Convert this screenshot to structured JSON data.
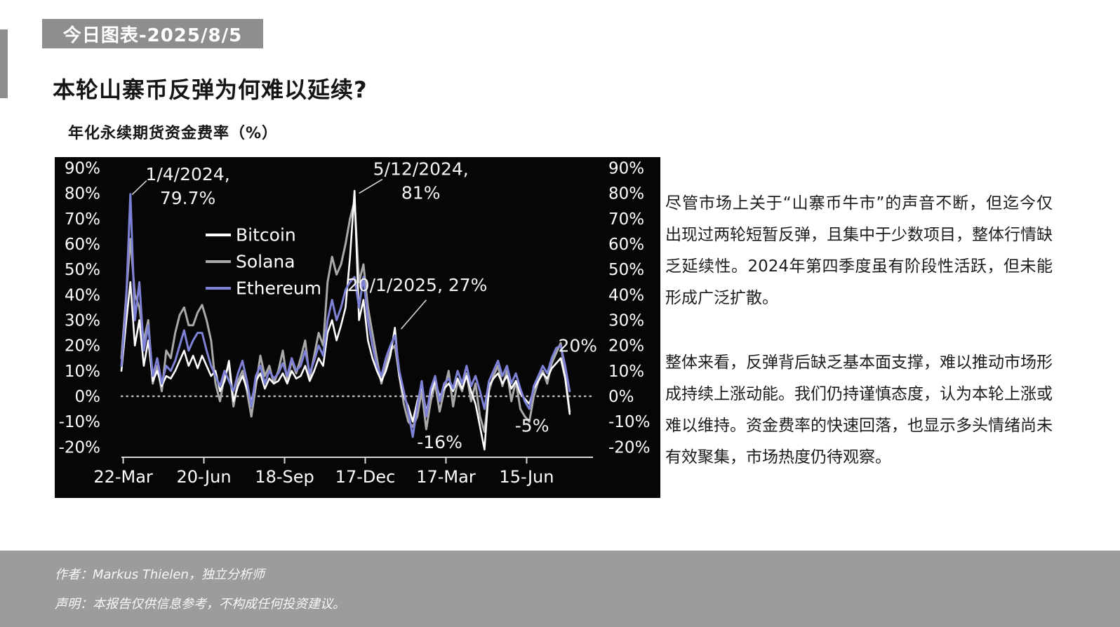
{
  "page": {
    "badge": "今日图表-2025/8/5",
    "title": "本轮山寨币反弹为何难以延续?",
    "chart_subtitle": "年化永续期货资金费率（%）"
  },
  "commentary": {
    "paragraphs": [
      "尽管市场上关于“山寨币牛市”的声音不断，但迄今仅出现过两轮短暂反弹，且集中于少数项目，整体行情缺乏延续性。2024年第四季度虽有阶段性活跃，但未能形成广泛扩散。",
      "整体来看，反弹背后缺乏基本面支撑，难以推动市场形成持续上涨动能。我们仍持谨慎态度，认为本轮上涨或难以维持。资金费率的快速回落，也显示多头情绪尚未有效聚集，市场热度仍待观察。"
    ]
  },
  "footer": {
    "author_line": "作者：Markus Thielen，独立分析师",
    "disclaimer_line": "声明：本报告仅供信息参考，不构成任何投资建议。"
  },
  "chart_data": {
    "type": "line",
    "title": "年化永续期货资金费率（%）",
    "background": "#060606",
    "ylim": [
      -20,
      90
    ],
    "y_ticks": [
      90,
      80,
      70,
      60,
      50,
      40,
      30,
      20,
      10,
      0,
      -10,
      -20
    ],
    "y_tick_suffix": "%",
    "y_axis_sides": "both",
    "zero_line": "dotted",
    "grid": false,
    "legend_position": "upper-left-inside",
    "x_ticks": [
      "22-Mar",
      "20-Jun",
      "18-Sep",
      "17-Dec",
      "17-Mar",
      "15-Jun"
    ],
    "x_tick_days": [
      2,
      92,
      182,
      272,
      362,
      452
    ],
    "x_domain_days": [
      0,
      526
    ],
    "sample_interval_days": 5,
    "series": [
      {
        "name": "Bitcoin",
        "color": "#ffffff",
        "values": [
          10,
          28,
          45,
          20,
          30,
          12,
          22,
          6,
          10,
          4,
          8,
          7,
          10,
          14,
          18,
          12,
          16,
          11,
          16,
          12,
          8,
          10,
          2,
          6,
          14,
          -2,
          4,
          8,
          3,
          -2,
          6,
          9,
          3,
          7,
          5,
          6,
          9,
          5,
          10,
          7,
          8,
          12,
          6,
          10,
          15,
          12,
          25,
          30,
          22,
          28,
          35,
          55,
          81,
          30,
          38,
          22,
          15,
          10,
          6,
          10,
          16,
          27,
          8,
          0,
          -4,
          -10,
          -2,
          4,
          -6,
          1,
          6,
          0,
          3,
          5,
          2,
          7,
          3,
          8,
          2,
          -3,
          -12,
          -21,
          4,
          7,
          9,
          5,
          8,
          3,
          6,
          1,
          -1,
          -3,
          3,
          6,
          9,
          7,
          11,
          13,
          15,
          7,
          -7
        ]
      },
      {
        "name": "Solana",
        "color": "#a9a9a9",
        "values": [
          15,
          38,
          62,
          40,
          35,
          22,
          30,
          5,
          12,
          2,
          18,
          15,
          25,
          32,
          35,
          28,
          28,
          33,
          36,
          30,
          22,
          5,
          -2,
          8,
          12,
          -4,
          6,
          10,
          2,
          -8,
          4,
          16,
          8,
          12,
          5,
          10,
          18,
          6,
          14,
          9,
          15,
          22,
          7,
          16,
          25,
          20,
          45,
          55,
          48,
          52,
          60,
          70,
          77,
          45,
          52,
          35,
          25,
          15,
          5,
          12,
          18,
          20,
          8,
          -3,
          -10,
          -12,
          -8,
          2,
          -13,
          -2,
          5,
          -6,
          2,
          10,
          -4,
          6,
          2,
          9,
          -2,
          5,
          -8,
          -14,
          2,
          8,
          12,
          4,
          10,
          -2,
          6,
          -5,
          -8,
          -10,
          0,
          6,
          10,
          5,
          13,
          17,
          21,
          8,
          -6
        ]
      },
      {
        "name": "Ethereum",
        "color": "#7d82d6",
        "values": [
          12,
          35,
          79.7,
          30,
          45,
          18,
          28,
          8,
          15,
          5,
          12,
          10,
          14,
          20,
          26,
          18,
          22,
          25,
          25,
          18,
          12,
          8,
          4,
          10,
          6,
          2,
          9,
          14,
          6,
          -4,
          8,
          12,
          5,
          10,
          7,
          9,
          13,
          8,
          15,
          10,
          12,
          18,
          9,
          14,
          20,
          16,
          30,
          38,
          30,
          35,
          42,
          45,
          47,
          35,
          47,
          30,
          20,
          12,
          8,
          15,
          20,
          24,
          10,
          2,
          -6,
          -16,
          -4,
          6,
          -8,
          3,
          8,
          -2,
          5,
          7,
          3,
          10,
          5,
          12,
          4,
          8,
          2,
          -5,
          6,
          10,
          14,
          8,
          12,
          5,
          9,
          3,
          -2,
          -5,
          4,
          8,
          12,
          9,
          15,
          19,
          20,
          12,
          2
        ]
      }
    ],
    "annotations": [
      {
        "lines": [
          "1/4/2024,",
          "79.7%"
        ],
        "label_day": 74,
        "label_value": 83,
        "leader": [
          [
            12,
            79.5
          ],
          [
            28,
            85
          ]
        ]
      },
      {
        "lines": [
          "5/12/2024,",
          "81%"
        ],
        "label_day": 334,
        "label_value": 85,
        "leader": [
          [
            265,
            80
          ],
          [
            291,
            85.5
          ]
        ]
      },
      {
        "lines": [
          "20/1/2025, 27%"
        ],
        "label_day": 330,
        "label_value": 44,
        "leader": [
          [
            340,
            38
          ],
          [
            312,
            26.5
          ]
        ]
      },
      {
        "lines": [
          "-16%"
        ],
        "label_day": 355,
        "label_value": -18
      },
      {
        "lines": [
          "-5%"
        ],
        "label_day": 458,
        "label_value": -11.5
      },
      {
        "lines": [
          "20%"
        ],
        "label_day": 509,
        "label_value": 20
      }
    ]
  },
  "colors": {
    "badge_bg": "#8e8e8e",
    "footer_bg": "#9c9c9c",
    "chart_bg": "#060606",
    "bitcoin": "#ffffff",
    "solana": "#a9a9a9",
    "ethereum": "#7d82d6"
  }
}
